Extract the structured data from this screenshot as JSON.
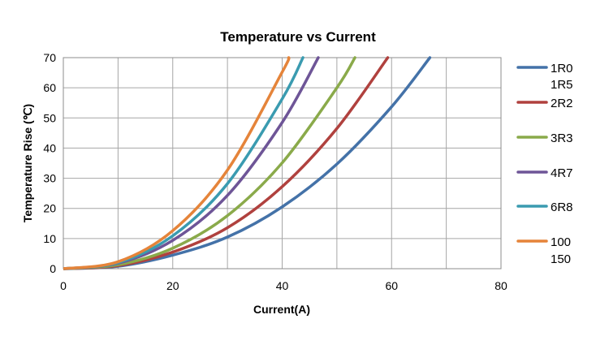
{
  "chart_data": {
    "type": "line",
    "title": "Temperature vs Current",
    "xlabel": "Current(A)",
    "ylabel": "Temperature Rise (℃)",
    "xlim": [
      0,
      80
    ],
    "ylim": [
      0,
      70
    ],
    "xticks": [
      "0",
      "20",
      "40",
      "60",
      "80"
    ],
    "yticks": [
      "0",
      "10",
      "20",
      "30",
      "40",
      "50",
      "60",
      "70"
    ],
    "grid": true,
    "legend_position": "right",
    "series": [
      {
        "name": "1R0",
        "color": "#4472a8",
        "points": [
          [
            0,
            0
          ],
          [
            10,
            0.8
          ],
          [
            20,
            4.5
          ],
          [
            30,
            10.5
          ],
          [
            40,
            20.5
          ],
          [
            50,
            34.7
          ],
          [
            60,
            53.7
          ],
          [
            67,
            70
          ]
        ]
      },
      {
        "name": "1R5",
        "color": null,
        "points": []
      },
      {
        "name": "2R2",
        "color": "#b0413e",
        "points": [
          [
            0,
            0
          ],
          [
            10,
            1.0
          ],
          [
            20,
            5.5
          ],
          [
            30,
            13.6
          ],
          [
            40,
            27.2
          ],
          [
            50,
            46.5
          ],
          [
            59.3,
            70
          ]
        ]
      },
      {
        "name": "3R3",
        "color": "#8aaa4a",
        "points": [
          [
            0,
            0
          ],
          [
            10,
            1.3
          ],
          [
            20,
            6.8
          ],
          [
            30,
            17.6
          ],
          [
            40,
            35.1
          ],
          [
            50,
            60
          ],
          [
            53.3,
            70
          ]
        ]
      },
      {
        "name": "4R7",
        "color": "#6e5597",
        "points": [
          [
            0,
            0
          ],
          [
            10,
            1.8
          ],
          [
            20,
            9.4
          ],
          [
            30,
            24.3
          ],
          [
            40,
            48.5
          ],
          [
            46.6,
            70
          ]
        ]
      },
      {
        "name": "6R8",
        "color": "#3a9bb0",
        "points": [
          [
            0,
            0
          ],
          [
            10,
            2.0
          ],
          [
            20,
            10.9
          ],
          [
            30,
            28.2
          ],
          [
            40,
            56.3
          ],
          [
            43.8,
            70
          ]
        ]
      },
      {
        "name": "100",
        "color": "#e5843a",
        "points": [
          [
            0,
            0
          ],
          [
            10,
            2.3
          ],
          [
            20,
            12.6
          ],
          [
            30,
            32.7
          ],
          [
            40,
            65.2
          ],
          [
            41.2,
            70
          ]
        ]
      },
      {
        "name": "150",
        "color": null,
        "points": []
      }
    ]
  }
}
